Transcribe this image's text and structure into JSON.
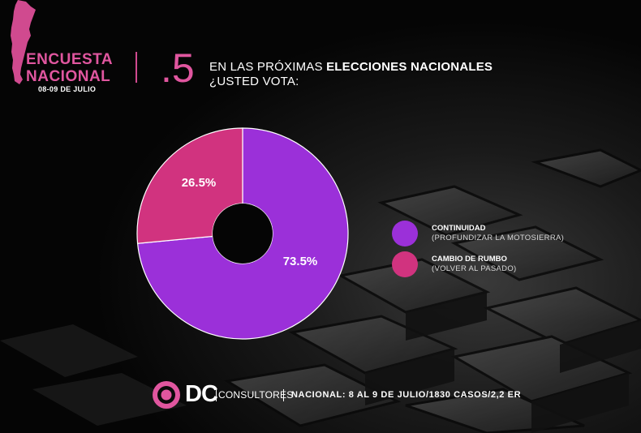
{
  "header": {
    "survey_title_line1": "ENCUESTA",
    "survey_title_line2": "NACIONAL",
    "survey_dates": "08-09 DE JULIO",
    "question_number": ".5",
    "question_part1": "EN LAS PRÓXIMAS ",
    "question_bold": "ELECCIONES NACIONALES",
    "question_line2": "¿USTED VOTA:"
  },
  "chart_data": {
    "type": "pie",
    "style": "donut",
    "categories": [
      "CONTINUIDAD",
      "CAMBIO DE RUMBO"
    ],
    "values": [
      73.5,
      26.5
    ],
    "value_labels": [
      "73.5%",
      "26.5%"
    ],
    "colors": [
      "#9b30d9",
      "#d1337f"
    ],
    "legend_position": "right"
  },
  "legend": [
    {
      "title": "CONTINUIDAD",
      "subtitle": "(PROFUNDIZAR LA MOTOSIERRA)",
      "color": "#9b30d9"
    },
    {
      "title": "CAMBIO DE RUMBO",
      "subtitle": "(VOLVER AL PASADO)",
      "color": "#d1337f"
    }
  ],
  "footer": {
    "brand": "DC",
    "brand_suffix": "CONSULTORES",
    "info": "NACIONAL: 8 AL 9 DE JULIO/1830 CASOS/2,2 ER"
  },
  "colors": {
    "accent_pink": "#e0569f",
    "background": "#050505"
  }
}
